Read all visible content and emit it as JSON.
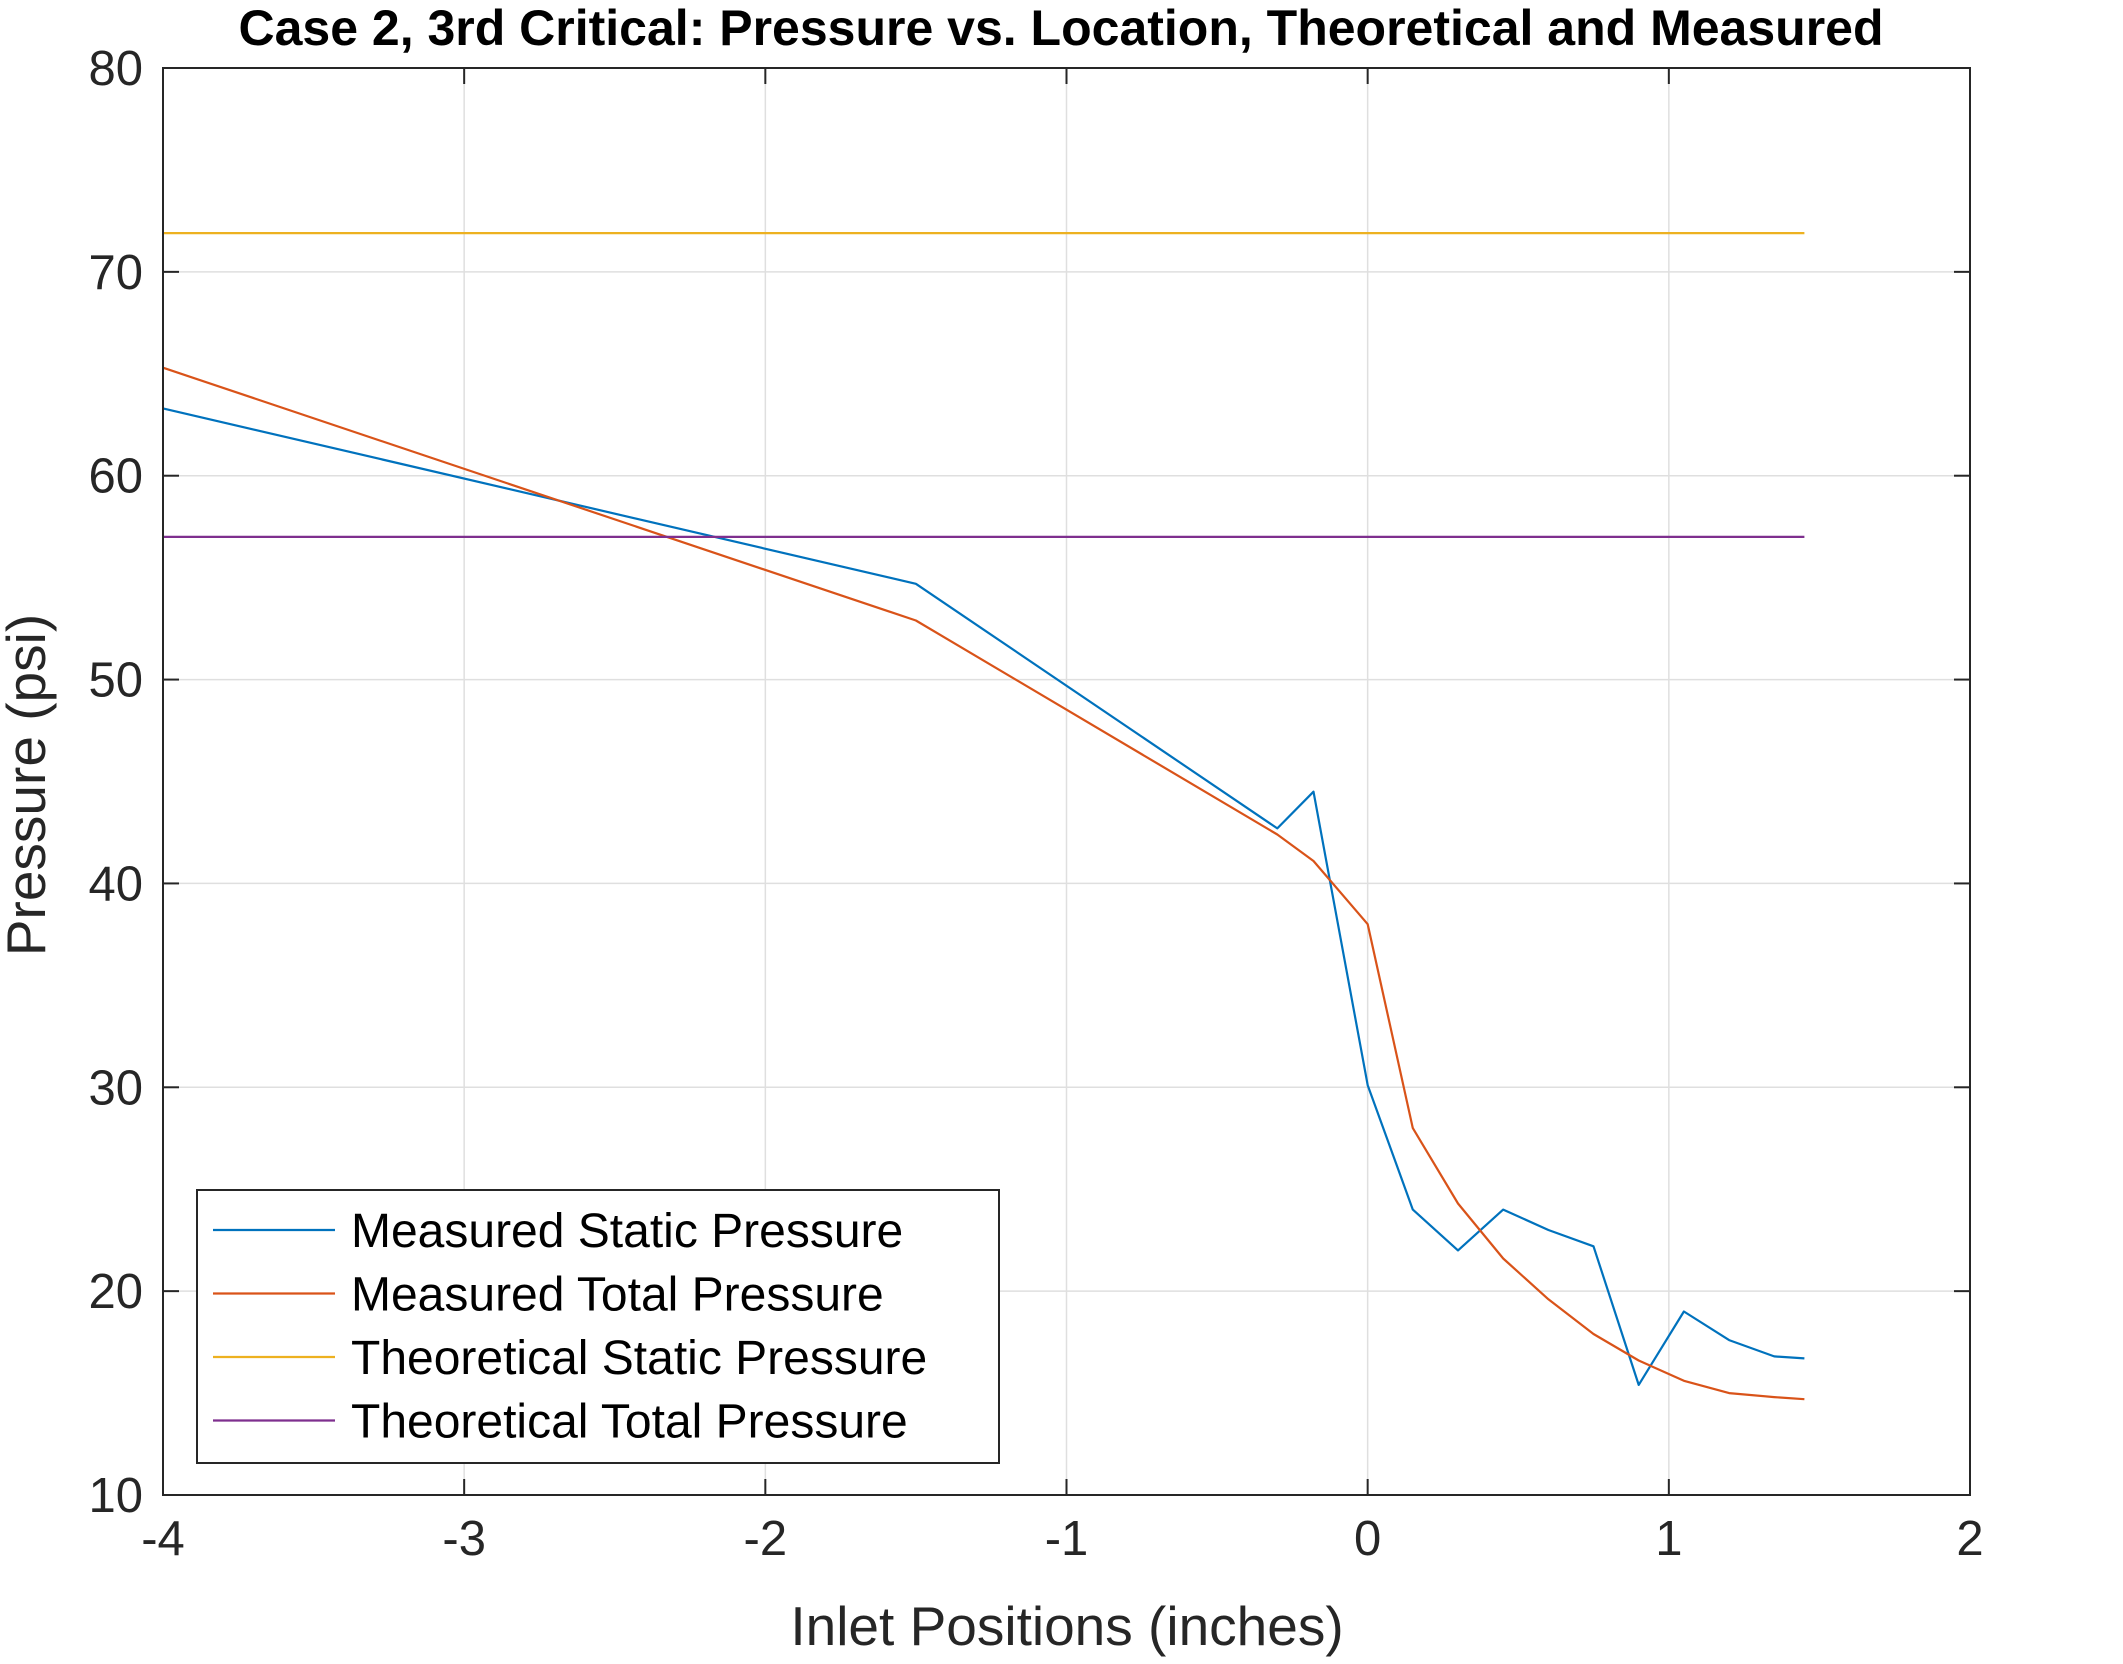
{
  "chart_data": {
    "type": "line",
    "title": "Case 2, 3rd Critical: Pressure vs. Location, Theoretical and Measured",
    "xlabel": "Inlet Positions (inches)",
    "ylabel": "Pressure (psi)",
    "xlim": [
      -4,
      2
    ],
    "ylim": [
      10,
      80
    ],
    "xticks": [
      -4,
      -3,
      -2,
      -1,
      0,
      1,
      2
    ],
    "yticks": [
      10,
      20,
      30,
      40,
      50,
      60,
      70,
      80
    ],
    "xtick_labels": [
      "-4",
      "-3",
      "-2",
      "-1",
      "0",
      "1",
      "2"
    ],
    "ytick_labels": [
      "10",
      "20",
      "30",
      "40",
      "50",
      "60",
      "70",
      "80"
    ],
    "grid": true,
    "legend_position": "bottom-left",
    "series": [
      {
        "name": "Measured Static Pressure",
        "color": "#0072BD",
        "x": [
          -4,
          -1.5,
          -0.3,
          -0.18,
          0,
          0.15,
          0.3,
          0.45,
          0.6,
          0.75,
          0.9,
          1.05,
          1.2,
          1.35,
          1.45
        ],
        "y": [
          63.3,
          54.7,
          42.7,
          44.5,
          30.1,
          24.0,
          22.0,
          24.0,
          23.0,
          22.2,
          15.4,
          19.0,
          17.6,
          16.8,
          16.7
        ]
      },
      {
        "name": "Measured Total Pressure",
        "color": "#D95319",
        "x": [
          -4,
          -1.5,
          -0.3,
          -0.18,
          0,
          0.15,
          0.3,
          0.45,
          0.6,
          0.75,
          0.9,
          1.05,
          1.2,
          1.35,
          1.45
        ],
        "y": [
          65.3,
          52.9,
          42.4,
          41.1,
          38.0,
          28.0,
          24.3,
          21.6,
          19.6,
          17.9,
          16.6,
          15.6,
          15.0,
          14.8,
          14.7
        ]
      },
      {
        "name": "Theoretical Static Pressure",
        "color": "#EDB120",
        "x": [
          -4,
          1.45
        ],
        "y": [
          71.9,
          71.9
        ]
      },
      {
        "name": "Theoretical Total Pressure",
        "color": "#7E2F8E",
        "x": [
          -4,
          1.45
        ],
        "y": [
          57.0,
          57.0
        ]
      }
    ]
  }
}
